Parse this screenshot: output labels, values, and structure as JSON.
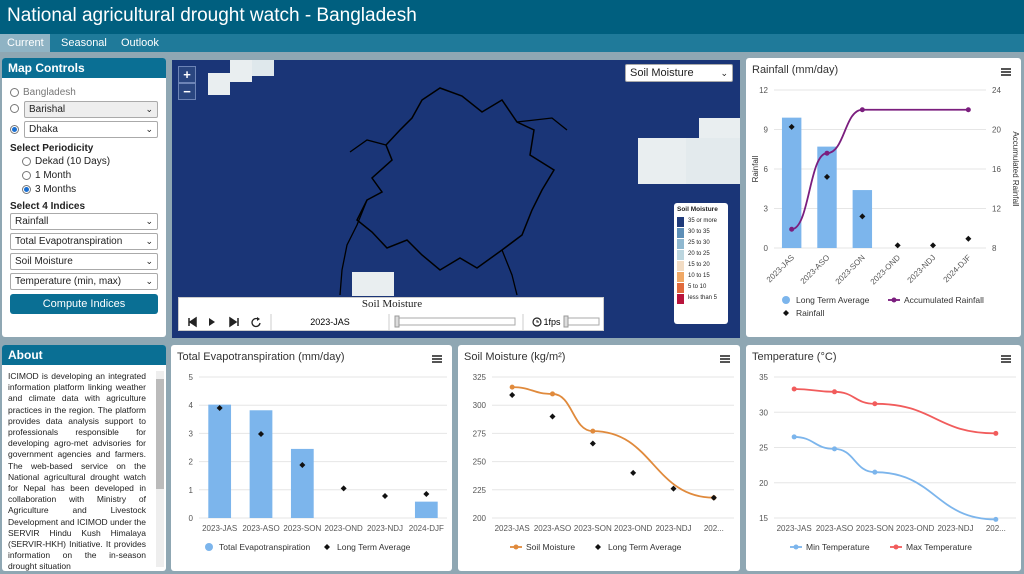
{
  "header": {
    "title": "National agricultural drought watch - Bangladesh"
  },
  "tabs": [
    {
      "label": "Current"
    },
    {
      "label": "Seasonal"
    },
    {
      "label": "Outlook"
    }
  ],
  "controls": {
    "title": "Map Controls",
    "country": "Bangladesh",
    "division": "Barishal",
    "district": "Dhaka",
    "periodicity_title": "Select Periodicity",
    "periodicity": [
      "Dekad (10 Days)",
      "1 Month",
      "3 Months"
    ],
    "indices_title": "Select 4 Indices",
    "indices": [
      "Rainfall",
      "Total Evapotranspiration",
      "Soil Moisture",
      "Temperature (min, max)"
    ],
    "compute_label": "Compute Indices"
  },
  "map": {
    "zoom_in": "+",
    "zoom_out": "−",
    "layer_select": "Soil Moisture",
    "legend_title": "Soil Moisture",
    "legend": [
      {
        "label": "35 or more",
        "color": "#1f3a7a"
      },
      {
        "label": "30 to 35",
        "color": "#5d8fb8"
      },
      {
        "label": "25 to 30",
        "color": "#8fb8d0"
      },
      {
        "label": "20 to 25",
        "color": "#bcd6df"
      },
      {
        "label": "15 to 20",
        "color": "#f2dcc4"
      },
      {
        "label": "10 to 15",
        "color": "#f0a865"
      },
      {
        "label": "5 to 10",
        "color": "#e06a3c"
      },
      {
        "label": "less than 5",
        "color": "#b8143c"
      }
    ],
    "player_title": "Soil Moisture",
    "player_period": "2023-JAS",
    "player_fps": "1fps"
  },
  "about": {
    "title": "About",
    "text": "ICIMOD is developing an integrated information platform linking weather and climate data with agriculture practices in the region. The platform provides data analysis support to professionals responsible for developing agro-met advisories for government agencies and farmers. The web-based service on the National agricultural drought watch for Nepal has been developed in collaboration with Ministry of Agriculture and Livestock Development and ICIMOD under the SERVIR Hindu Kush Himalaya (SERVIR-HKH) Initiative. It provides information on the in-season drought situation"
  },
  "colors": {
    "header": "#005f7f",
    "tabs": "#1f7a9a",
    "accent": "#0a6f94",
    "bar": "#7cb5ec",
    "line_purple": "#7b1e7e",
    "orange": "#e08a3c",
    "red": "#f15c5c"
  },
  "chart_data": [
    {
      "type": "bar",
      "title": "Rainfall (mm/day)",
      "categories": [
        "2023-JAS",
        "2023-ASO",
        "2023-SON",
        "2023-OND",
        "2023-NDJ",
        "2024-DJF"
      ],
      "ylabel": "Rainfall",
      "y2label": "Accumulated Rainfall",
      "ylim": [
        0,
        12
      ],
      "y2lim": [
        8,
        24
      ],
      "yticks": [
        "0",
        "3",
        "6",
        "9",
        "12"
      ],
      "y2ticks": [
        "8",
        "12",
        "16",
        "20",
        "24"
      ],
      "series": [
        {
          "name": "Rainfall",
          "kind": "bar",
          "values": [
            9.9,
            7.7,
            4.4,
            0,
            0,
            0
          ]
        },
        {
          "name": "Long Term Average",
          "kind": "marker",
          "values": [
            9.2,
            5.4,
            2.4,
            0.2,
            0.2,
            0.7
          ]
        },
        {
          "name": "Accumulated Rainfall",
          "kind": "line",
          "axis": "right",
          "values": [
            9.9,
            17.6,
            22,
            null,
            null,
            22
          ]
        }
      ]
    },
    {
      "type": "bar",
      "title": "Total Evapotranspiration (mm/day)",
      "categories": [
        "2023-JAS",
        "2023-ASO",
        "2023-SON",
        "2023-OND",
        "2023-NDJ",
        "2024-DJF"
      ],
      "ylim": [
        0,
        5
      ],
      "yticks": [
        "0",
        "1",
        "2",
        "3",
        "4",
        "5"
      ],
      "series": [
        {
          "name": "Total Evapotranspiration",
          "kind": "bar",
          "values": [
            4.02,
            3.82,
            2.45,
            0,
            0,
            0.58
          ]
        },
        {
          "name": "Long Term Average",
          "kind": "marker",
          "values": [
            3.9,
            2.98,
            1.88,
            1.05,
            0.78,
            0.85
          ]
        }
      ]
    },
    {
      "type": "line",
      "title": "Soil Moisture (kg/m²)",
      "categories": [
        "2023-JAS",
        "2023-ASO",
        "2023-SON",
        "2023-OND",
        "2023-NDJ",
        "202..."
      ],
      "ylim": [
        200,
        325
      ],
      "yticks": [
        "200",
        "225",
        "250",
        "275",
        "300",
        "325"
      ],
      "series": [
        {
          "name": "Soil Moisture",
          "kind": "line",
          "values": [
            316,
            310,
            277,
            null,
            null,
            218
          ]
        },
        {
          "name": "Long Term Average",
          "kind": "marker",
          "values": [
            309,
            290,
            266,
            240,
            226,
            218
          ]
        }
      ]
    },
    {
      "type": "line",
      "title": "Temperature (°C)",
      "categories": [
        "2023-JAS",
        "2023-ASO",
        "2023-SON",
        "2023-OND",
        "2023-NDJ",
        "202..."
      ],
      "ylim": [
        15,
        35
      ],
      "yticks": [
        "15",
        "20",
        "25",
        "30",
        "35"
      ],
      "series": [
        {
          "name": "Min Temperature",
          "kind": "line",
          "values": [
            26.5,
            24.8,
            21.5,
            null,
            null,
            14.8
          ]
        },
        {
          "name": "Max Temperature",
          "kind": "line",
          "values": [
            33.3,
            32.9,
            31.2,
            null,
            null,
            27
          ]
        }
      ]
    }
  ]
}
